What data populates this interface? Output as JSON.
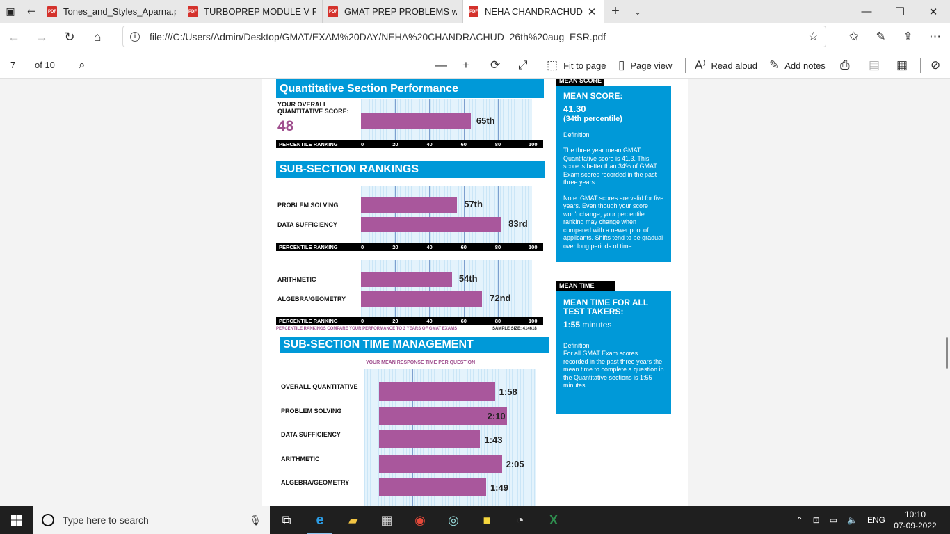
{
  "tabs": [
    {
      "title": "Tones_and_Styles_Aparna.pc",
      "active": false
    },
    {
      "title": "TURBOPREP MODULE V FO",
      "active": false
    },
    {
      "title": "GMAT PREP PROBLEMS witl",
      "active": false
    },
    {
      "title": "NEHA CHANDRACHUD",
      "active": true
    }
  ],
  "address": {
    "url": "file:///C:/Users/Admin/Desktop/GMAT/EXAM%20DAY/NEHA%20CHANDRACHUD_26th%20aug_ESR.pdf"
  },
  "pdf_toolbar": {
    "page_current": "7",
    "page_total": "of 10",
    "fit_to_page": "Fit to page",
    "page_view": "Page view",
    "read_aloud": "Read aloud",
    "add_notes": "Add notes"
  },
  "report": {
    "quant_title": "Quantitative Section Performance",
    "overall_label_1": "YOUR OVERALL",
    "overall_label_2": "QUANTITATIVE SCORE:",
    "overall_score": "48",
    "overall_percentile": 65,
    "overall_percentile_label": "65th",
    "axis_label": "PERCENTILE RANKING",
    "axis_ticks": [
      "0",
      "20",
      "40",
      "60",
      "80",
      "100"
    ],
    "subsection_title": "SUB-SECTION RANKINGS",
    "rankings_a": [
      {
        "name": "PROBLEM SOLVING",
        "value": 57,
        "label": "57th"
      },
      {
        "name": "DATA SUFFICIENCY",
        "value": 83,
        "label": "83rd"
      }
    ],
    "rankings_b": [
      {
        "name": "ARITHMETIC",
        "value": 54,
        "label": "54th"
      },
      {
        "name": "ALGEBRA/GEOMETRY",
        "value": 72,
        "label": "72nd"
      }
    ],
    "compare_note": "PERCENTILE RANKINGS COMPARE YOUR PERFORMANCE TO 3 YEARS OF GMAT EXAMS",
    "sample_size": "SAMPLE SIZE: 414618",
    "time_title": "SUB-SECTION TIME MANAGEMENT",
    "time_caption": "YOUR MEAN RESPONSE TIME PER QUESTION",
    "time_rows": [
      {
        "name": "OVERALL QUANTITATIVE",
        "seconds": 118,
        "label": "1:58"
      },
      {
        "name": "PROBLEM SOLVING",
        "seconds": 130,
        "label": "2:10"
      },
      {
        "name": "DATA SUFFICIENCY",
        "seconds": 103,
        "label": "1:43"
      },
      {
        "name": "ARITHMETIC",
        "seconds": 125,
        "label": "2:05"
      },
      {
        "name": "ALGEBRA/GEOMETRY",
        "seconds": 109,
        "label": "1:49"
      }
    ]
  },
  "side": {
    "mean_score_tab": "MEAN SCORE",
    "mean_score_heading": "MEAN SCORE:",
    "mean_score_value": "41.30",
    "mean_score_pct": "(34th percentile)",
    "definition_label": "Definition",
    "mean_score_def": "The three year mean GMAT Quantitative score is 41.3. This score is better than 34% of GMAT Exam scores recorded in the past three years.",
    "mean_score_note": "Note:  GMAT scores are valid for five years. Even though your score won't change, your percentile ranking may change when compared with a newer pool of applicants.  Shifts tend to be gradual over long periods of time.",
    "mean_time_tab": "MEAN TIME",
    "mean_time_heading": "MEAN TIME FOR ALL TEST TAKERS:",
    "mean_time_value": "1:55",
    "mean_time_unit": "minutes",
    "mean_time_def_label": "Definition",
    "mean_time_def": "For all GMAT Exam scores recorded in the past three years the mean time to complete a question in the Quantitative sections is 1:55 minutes."
  },
  "taskbar": {
    "search_placeholder": "Type here to search",
    "language": "ENG",
    "time": "10:10",
    "date": "07-09-2022"
  }
}
